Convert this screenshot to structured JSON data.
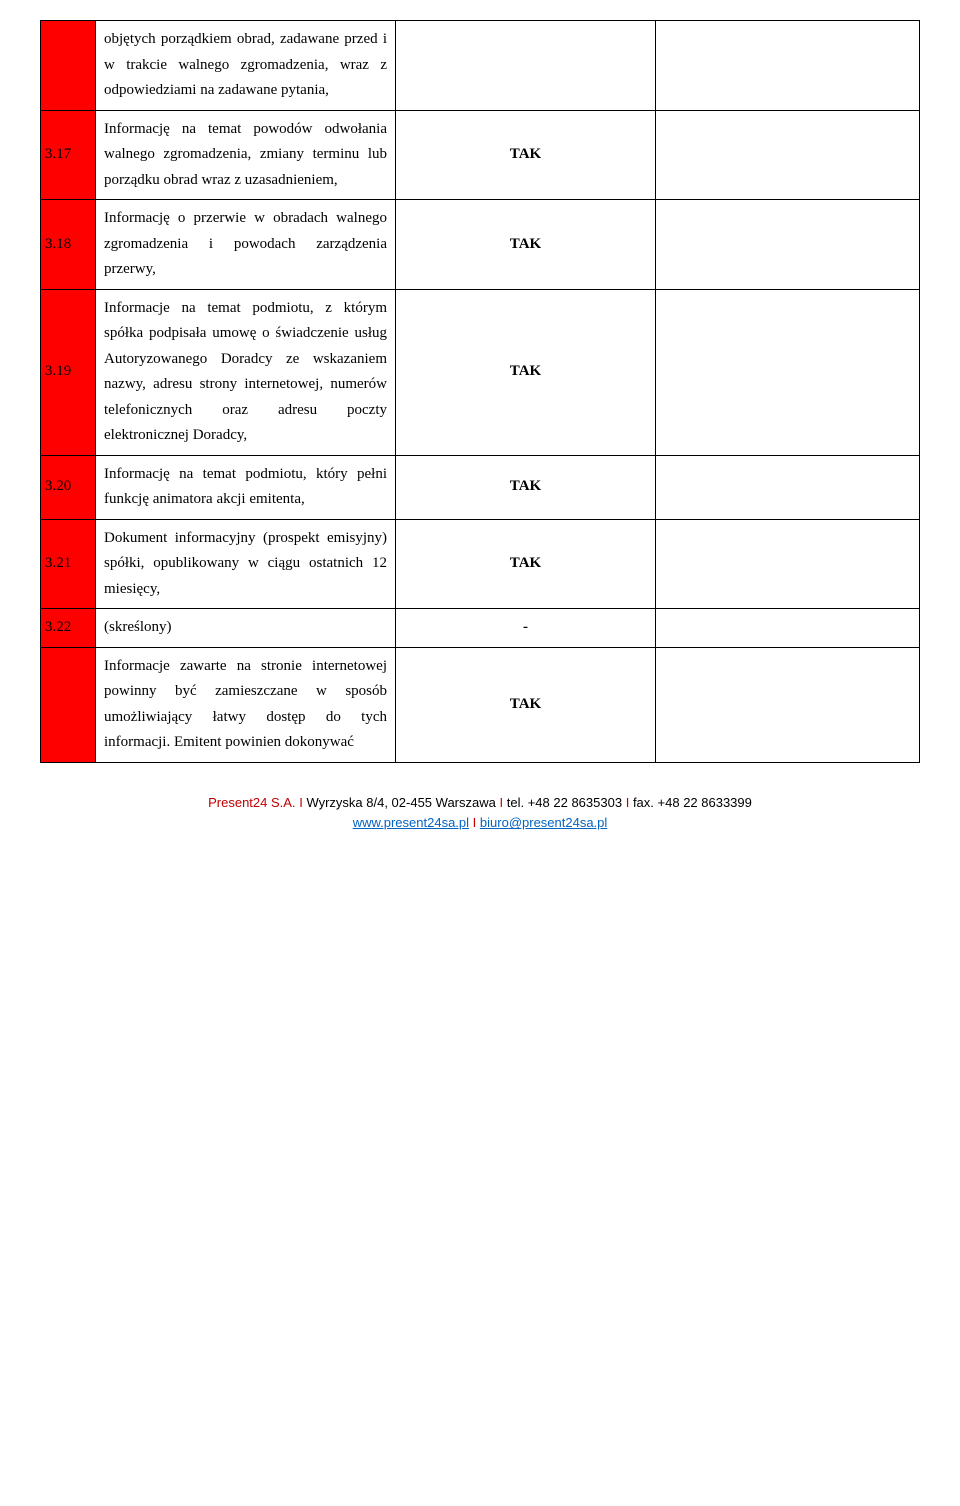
{
  "colors": {
    "row_number_bg": "#ff0000",
    "border": "#000000",
    "company": "#c00000",
    "link": "#0563c1",
    "separator": "#c00000",
    "text": "#000000",
    "background": "#ffffff"
  },
  "typography": {
    "body_font": "Georgia, 'Times New Roman', serif",
    "footer_font": "Arial, Helvetica, sans-serif",
    "body_size_pt": 11,
    "footer_size_pt": 10
  },
  "rows": [
    {
      "num": "",
      "desc": "objętych porządkiem obrad, zadawane przed i w trakcie walnego zgromadzenia, wraz z odpowiedziami na zadawane pytania,",
      "status": ""
    },
    {
      "num": "3.17",
      "desc": "Informację na temat powodów odwołania walnego zgromadzenia, zmiany terminu lub porządku obrad wraz z uzasadnieniem,",
      "status": "TAK"
    },
    {
      "num": "3.18",
      "desc": "Informację o przerwie w obradach walnego zgromadzenia i powodach zarządzenia przerwy,",
      "status": "TAK"
    },
    {
      "num": "3.19",
      "desc": "Informacje na temat podmiotu, z którym spółka podpisała umowę o świadczenie usług Autoryzowanego Doradcy ze wskazaniem nazwy, adresu strony internetowej, numerów telefonicznych oraz adresu poczty elektronicznej Doradcy,",
      "status": "TAK"
    },
    {
      "num": "3.20",
      "desc": "Informację na temat podmiotu, który pełni funkcję animatora akcji emitenta,",
      "status": "TAK"
    },
    {
      "num": "3.21",
      "desc": "Dokument informacyjny (prospekt emisyjny) spółki, opublikowany w ciągu ostatnich 12 miesięcy,",
      "status": "TAK"
    },
    {
      "num": "3.22",
      "desc": "(skreślony)",
      "status": "-"
    },
    {
      "num": "",
      "desc": "Informacje zawarte na stronie internetowej powinny być zamieszczane w sposób umożliwiający łatwy dostęp do tych informacji. Emitent powinien dokonywać",
      "status": "TAK"
    }
  ],
  "footer": {
    "company": "Present24 S.A.",
    "address": "Wyrzyska 8/4, 02-455 Warszawa",
    "tel_label": "tel.",
    "tel": "+48 22 8635303",
    "fax_label": "fax.",
    "fax": "+48 22 8633399",
    "site": "www.present24sa.pl",
    "email": "biuro@present24sa.pl",
    "sep": "I"
  }
}
